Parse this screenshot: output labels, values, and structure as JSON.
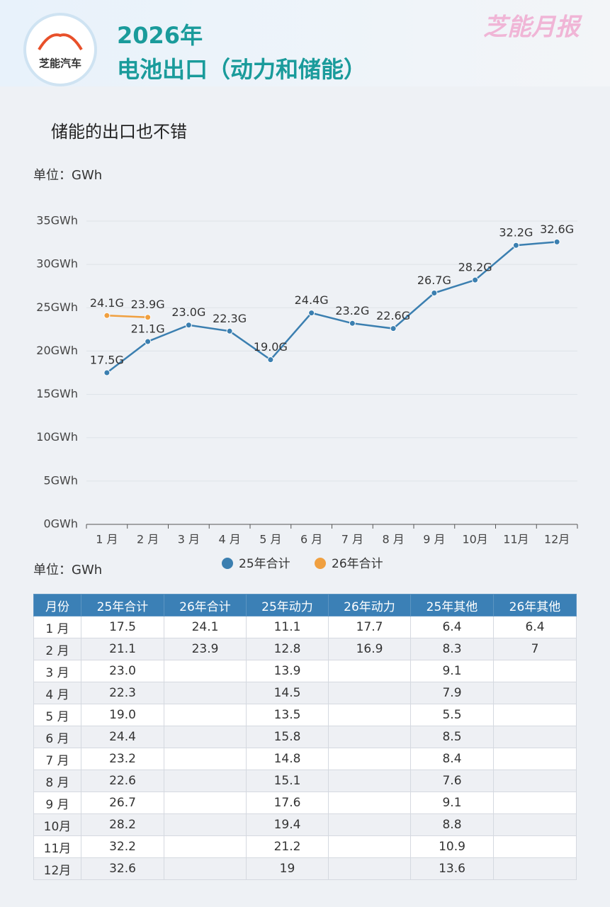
{
  "header": {
    "logo": "芝能汽车",
    "title_line1": "2026年",
    "title_line2": "电池出口（动力和储能）",
    "brand": "芝能月报"
  },
  "chart_data": {
    "type": "line",
    "title": "储能的出口也不错",
    "unit": "单位：GWh",
    "categories": [
      "1 月",
      "2 月",
      "3 月",
      "4 月",
      "5 月",
      "6 月",
      "7 月",
      "8 月",
      "9 月",
      "10月",
      "11月",
      "12月"
    ],
    "series": [
      {
        "name": "25年合计",
        "color": "#3b7fb0",
        "values": [
          17.5,
          21.1,
          23.0,
          22.3,
          19.0,
          24.4,
          23.2,
          22.6,
          26.7,
          28.2,
          32.2,
          32.6
        ],
        "value_labels": [
          "17.5G",
          "21.1G",
          "23.0G",
          "22.3G",
          "19.0G",
          "24.4G",
          "23.2G",
          "22.6G",
          "26.7G",
          "28.2G",
          "32.2G",
          "32.6G"
        ]
      },
      {
        "name": "26年合计",
        "color": "#f0a040",
        "values": [
          24.1,
          23.9,
          null,
          null,
          null,
          null,
          null,
          null,
          null,
          null,
          null,
          null
        ],
        "value_labels": [
          "24.1G",
          "23.9G",
          null,
          null,
          null,
          null,
          null,
          null,
          null,
          null,
          null,
          null
        ]
      }
    ],
    "ylim": [
      0,
      35
    ],
    "yticks": [
      {
        "value": 0,
        "label": "0GWh"
      },
      {
        "value": 5,
        "label": "5GWh"
      },
      {
        "value": 10,
        "label": "10GWh"
      },
      {
        "value": 15,
        "label": "15GWh"
      },
      {
        "value": 20,
        "label": "20GWh"
      },
      {
        "value": 25,
        "label": "25GWh"
      },
      {
        "value": 30,
        "label": "30GWh"
      },
      {
        "value": 35,
        "label": "35GWh"
      }
    ],
    "grid": true,
    "legend": "bottom"
  },
  "table": {
    "unit": "单位：GWh",
    "header": [
      "月份",
      "25年合计",
      "26年合计",
      "25年动力",
      "26年动力",
      "25年其他",
      "26年其他"
    ],
    "rows": [
      [
        "1 月",
        "17.5",
        "24.1",
        "11.1",
        "17.7",
        "6.4",
        "6.4"
      ],
      [
        "2 月",
        "21.1",
        "23.9",
        "12.8",
        "16.9",
        "8.3",
        "7"
      ],
      [
        "3 月",
        "23.0",
        null,
        "13.9",
        null,
        "9.1",
        null
      ],
      [
        "4 月",
        "22.3",
        null,
        "14.5",
        null,
        "7.9",
        null
      ],
      [
        "5 月",
        "19.0",
        null,
        "13.5",
        null,
        "5.5",
        null
      ],
      [
        "6 月",
        "24.4",
        null,
        "15.8",
        null,
        "8.5",
        null
      ],
      [
        "7 月",
        "23.2",
        null,
        "14.8",
        null,
        "8.4",
        null
      ],
      [
        "8 月",
        "22.6",
        null,
        "15.1",
        null,
        "7.6",
        null
      ],
      [
        "9 月",
        "26.7",
        null,
        "17.6",
        null,
        "9.1",
        null
      ],
      [
        "10月",
        "28.2",
        null,
        "19.4",
        null,
        "8.8",
        null
      ],
      [
        "11月",
        "32.2",
        null,
        "21.2",
        null,
        "10.9",
        null
      ],
      [
        "12月",
        "32.6",
        null,
        "19",
        null,
        "13.6",
        null
      ]
    ]
  }
}
